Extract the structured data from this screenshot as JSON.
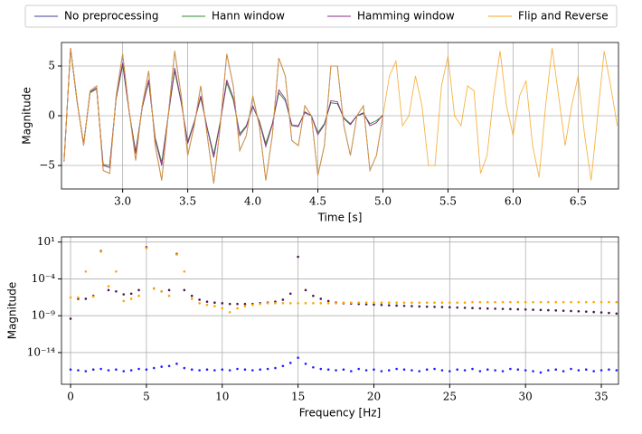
{
  "chart_data": [
    {
      "type": "line",
      "xlabel": "Time [s]",
      "ylabel": "Magnitude",
      "grid": true,
      "legend": "upper center",
      "xlim": [
        2.53,
        6.81
      ],
      "ylim": [
        -7.36,
        7.36
      ],
      "xticks": [
        {
          "value": 3,
          "label": "3.0"
        },
        {
          "value": 3.5,
          "label": "3.5"
        },
        {
          "value": 4,
          "label": "4.0"
        },
        {
          "value": 4.5,
          "label": "4.5"
        },
        {
          "value": 5,
          "label": "5.0"
        },
        {
          "value": 5.5,
          "label": "5.5"
        },
        {
          "value": 6,
          "label": "6.0"
        },
        {
          "value": 6.5,
          "label": "6.5"
        }
      ],
      "yticks": [
        {
          "value": -5,
          "label": "−5"
        },
        0,
        5
      ],
      "x": [
        2.55,
        2.6,
        2.65,
        2.7,
        2.75,
        2.8,
        2.85,
        2.9,
        2.95,
        3.0,
        3.05,
        3.1,
        3.15,
        3.2,
        3.25,
        3.3,
        3.35,
        3.4,
        3.45,
        3.5,
        3.55,
        3.6,
        3.65,
        3.7,
        3.75,
        3.8,
        3.85,
        3.9,
        3.95,
        4.0,
        4.05,
        4.1,
        4.15,
        4.2,
        4.25,
        4.3,
        4.35,
        4.4,
        4.45,
        4.5,
        4.55,
        4.6,
        4.65,
        4.7,
        4.75,
        4.8,
        4.85,
        4.9,
        4.95,
        5.0,
        5.05,
        5.1,
        5.15,
        5.2,
        5.25,
        5.3,
        5.35,
        5.4,
        5.45,
        5.5,
        5.55,
        5.6,
        5.65,
        5.7,
        5.75,
        5.8,
        5.85,
        5.9,
        5.95,
        6.0,
        6.05,
        6.1,
        6.15,
        6.2,
        6.25,
        6.3,
        6.35,
        6.4,
        6.45,
        6.5,
        6.55,
        6.6,
        6.65,
        6.7,
        6.75,
        6.8
      ],
      "series": [
        {
          "name": "No preprocessing",
          "color": "#3f3f9f",
          "values": [
            -4.5,
            6.8,
            1.5,
            -3,
            2.5,
            3.0,
            -5.5,
            -5.8,
            2,
            6.2,
            0.5,
            -4.5,
            1,
            4.5,
            -3,
            -6.5,
            0,
            6.5,
            2,
            -4,
            -1,
            3,
            -2,
            -6.8,
            -1,
            6.2,
            3,
            -3.5,
            -2,
            2,
            -1,
            -6.5,
            -2,
            5.8,
            4,
            -2.5,
            -3,
            1,
            0,
            -6,
            -3,
            5,
            5,
            -1,
            -4,
            0,
            1,
            -5.5,
            -4,
            0,
            null,
            null,
            null,
            null,
            null,
            null,
            null,
            null,
            null,
            null,
            null,
            null,
            null,
            null,
            null,
            null,
            null,
            null,
            null,
            null,
            null,
            null,
            null,
            null,
            null,
            null,
            null,
            null,
            null,
            null,
            null,
            null,
            null,
            null,
            null,
            null
          ]
        },
        {
          "name": "Hann window",
          "color": "#2e8b2e",
          "values": [
            -4.5,
            6.7,
            1.4,
            -2.8,
            2.3,
            2.7,
            -4.9,
            -5.0,
            1.7,
            5.1,
            0.4,
            -3.6,
            0.8,
            3.4,
            -2.2,
            -4.7,
            0,
            4.5,
            1.3,
            -2.6,
            -0.6,
            1.8,
            -1.2,
            -3.9,
            -0.6,
            3.3,
            1.6,
            -1.8,
            -1,
            0.9,
            -0.5,
            -2.8,
            -0.8,
            2.3,
            1.5,
            -0.9,
            -1,
            0.3,
            0,
            -1.7,
            -0.8,
            1.3,
            1.2,
            -0.2,
            -0.8,
            0,
            0.2,
            -0.8,
            -0.5,
            0,
            null,
            null,
            null,
            null,
            null,
            null,
            null,
            null,
            null,
            null,
            null,
            null,
            null,
            null,
            null,
            null,
            null,
            null,
            null,
            null,
            null,
            null,
            null,
            null,
            null,
            null,
            null,
            null,
            null,
            null,
            null,
            null,
            null,
            null,
            null,
            null
          ]
        },
        {
          "name": "Hamming window",
          "color": "#8b2e8b",
          "values": [
            -4.6,
            6.8,
            1.4,
            -2.9,
            2.4,
            2.8,
            -5.0,
            -5.2,
            1.8,
            5.3,
            0.4,
            -3.8,
            0.8,
            3.6,
            -2.4,
            -5.0,
            0,
            4.8,
            1.4,
            -2.8,
            -0.7,
            2.0,
            -1.3,
            -4.2,
            -0.7,
            3.6,
            1.8,
            -2.0,
            -1.1,
            1.0,
            -0.6,
            -3.1,
            -0.9,
            2.6,
            1.7,
            -1.0,
            -1.1,
            0.4,
            0,
            -1.9,
            -0.9,
            1.5,
            1.4,
            -0.3,
            -0.9,
            0,
            0.3,
            -1.0,
            -0.7,
            0.1,
            null,
            null,
            null,
            null,
            null,
            null,
            null,
            null,
            null,
            null,
            null,
            null,
            null,
            null,
            null,
            null,
            null,
            null,
            null,
            null,
            null,
            null,
            null,
            null,
            null,
            null,
            null,
            null,
            null,
            null,
            null,
            null,
            null,
            null,
            null,
            null
          ]
        },
        {
          "name": "Flip and Reverse",
          "color": "#f5a623",
          "values": [
            -4.5,
            6.8,
            1.5,
            -3,
            2.5,
            3.0,
            -5.5,
            -5.8,
            2,
            6.2,
            0.5,
            -4.5,
            1,
            4.5,
            -3,
            -6.5,
            0,
            6.5,
            2,
            -4,
            -1,
            3,
            -2,
            -6.8,
            -1,
            6.2,
            3,
            -3.5,
            -2,
            2,
            -1,
            -6.5,
            -2,
            5.8,
            4,
            -2.5,
            -3,
            1,
            0,
            -6,
            -3,
            5,
            5,
            -1,
            -4,
            0,
            1,
            -5.5,
            -4,
            0,
            4,
            5.5,
            -1,
            0,
            4,
            1,
            -5,
            -5,
            3,
            6,
            0,
            -1,
            3,
            2.5,
            -5.8,
            -4,
            2,
            6.5,
            1,
            -2,
            2,
            3.5,
            -3,
            -6.2,
            1,
            6.8,
            2,
            -3,
            1,
            4,
            -2,
            -6.5,
            0,
            6.5,
            3,
            -1
          ]
        }
      ]
    },
    {
      "type": "scatter",
      "xlabel": "Frequency [Hz]",
      "ylabel": "Magnitude",
      "grid": true,
      "ylog": true,
      "xlim": [
        -0.6,
        36.13
      ],
      "ylim": [
        50,
        5e-19
      ],
      "xticks": [
        0,
        5,
        10,
        15,
        20,
        25,
        30,
        35
      ],
      "yticks": [
        {
          "value": 10,
          "label": "10¹"
        },
        {
          "value": 0.0001,
          "label": "10⁻⁴"
        },
        {
          "value": 1e-09,
          "label": "10⁻⁹"
        },
        {
          "value": 1e-14,
          "label": "10⁻¹⁴"
        }
      ],
      "x": [
        0,
        0.5,
        1,
        1.5,
        2,
        2.5,
        3,
        3.5,
        4,
        4.5,
        5,
        5.5,
        6,
        6.5,
        7,
        7.5,
        8,
        8.5,
        9,
        9.5,
        10,
        10.5,
        11,
        11.5,
        12,
        12.5,
        13,
        13.5,
        14,
        14.5,
        15,
        15.5,
        16,
        16.5,
        17,
        17.5,
        18,
        18.5,
        19,
        19.5,
        20,
        20.5,
        21,
        21.5,
        22,
        22.5,
        23,
        23.5,
        24,
        24.5,
        25,
        25.5,
        26,
        26.5,
        27,
        27.5,
        28,
        28.5,
        29,
        29.5,
        30,
        30.5,
        31,
        31.5,
        32,
        32.5,
        33,
        33.5,
        34,
        34.5,
        35,
        35.5,
        36
      ],
      "series": [
        {
          "color": "#4b1850",
          "values": [
            4e-10,
            2e-07,
            2e-07,
            5e-07,
            0.6,
            3e-06,
            2e-06,
            8e-07,
            1e-06,
            3e-06,
            2,
            5e-06,
            2e-06,
            3e-06,
            0.25,
            3e-06,
            5e-07,
            1.5e-07,
            8e-08,
            6e-08,
            5e-08,
            4e-08,
            4e-08,
            4e-08,
            4e-08,
            5e-08,
            6e-08,
            8e-08,
            1.5e-07,
            1e-06,
            0.1,
            3e-06,
            5e-07,
            2e-07,
            1e-07,
            6e-08,
            5e-08,
            4.5e-08,
            4e-08,
            3.6e-08,
            3.2e-08,
            2.9e-08,
            2.6e-08,
            2.4e-08,
            2.2e-08,
            2e-08,
            1.8e-08,
            1.7e-08,
            1.6e-08,
            1.5e-08,
            1.4e-08,
            1.3e-08,
            1.2e-08,
            1.1e-08,
            1e-08,
            9.5e-09,
            9e-09,
            8.5e-09,
            8e-09,
            7.5e-09,
            7e-09,
            6.5e-09,
            6e-09,
            5.6e-09,
            5.2e-09,
            4.8e-09,
            4.4e-09,
            4e-09,
            3.6e-09,
            3.2e-09,
            2.8e-09,
            2.4e-09,
            2e-09
          ]
        },
        {
          "color": "#ffa500",
          "values": [
            3e-07,
            3e-07,
            0.001,
            4e-07,
            0.5,
            1e-05,
            0.001,
            1e-07,
            2e-07,
            5e-07,
            1.5,
            5e-06,
            2e-06,
            5e-07,
            0.2,
            0.001,
            2e-07,
            5e-08,
            3e-08,
            2e-08,
            1e-08,
            3e-09,
            1e-08,
            2e-08,
            3e-08,
            4e-08,
            5e-08,
            5e-08,
            5e-08,
            5e-08,
            5e-08,
            5e-08,
            5e-08,
            5e-08,
            5e-08,
            5e-08,
            6e-08,
            6e-08,
            6e-08,
            6e-08,
            6e-08,
            6e-08,
            6e-08,
            6e-08,
            6e-08,
            6e-08,
            6e-08,
            6e-08,
            6e-08,
            6e-08,
            6e-08,
            6e-08,
            6e-08,
            7e-08,
            7e-08,
            7e-08,
            7e-08,
            7e-08,
            7e-08,
            7e-08,
            7e-08,
            7e-08,
            7e-08,
            7e-08,
            7e-08,
            7e-08,
            7e-08,
            7e-08,
            7e-08,
            7e-08,
            7e-08,
            7e-08,
            7e-08
          ]
        },
        {
          "color": "#1f1fff",
          "values": [
            5e-17,
            4e-17,
            3e-17,
            5e-17,
            6e-17,
            4e-17,
            5e-17,
            3e-17,
            4e-17,
            6e-17,
            5e-17,
            8e-17,
            1.2e-16,
            1.5e-16,
            3e-16,
            8e-17,
            5e-17,
            4e-17,
            5e-17,
            4e-17,
            5e-17,
            4e-17,
            6e-17,
            5e-17,
            4e-17,
            5e-17,
            6e-17,
            8e-17,
            1.5e-16,
            4e-16,
            2e-15,
            3e-16,
            1e-16,
            6e-17,
            5e-17,
            4e-17,
            5e-17,
            3e-17,
            6e-17,
            4e-17,
            5e-17,
            3e-17,
            4e-17,
            6e-17,
            5e-17,
            4e-17,
            3e-17,
            5e-17,
            6e-17,
            4e-17,
            3e-17,
            5e-17,
            4e-17,
            6e-17,
            3e-17,
            5e-17,
            4e-17,
            3e-17,
            6e-17,
            5e-17,
            4e-17,
            3e-17,
            2e-17,
            4e-17,
            5e-17,
            3e-17,
            6e-17,
            4e-17,
            5e-17,
            3e-17,
            4e-17,
            5e-17,
            4e-17
          ]
        }
      ]
    }
  ]
}
